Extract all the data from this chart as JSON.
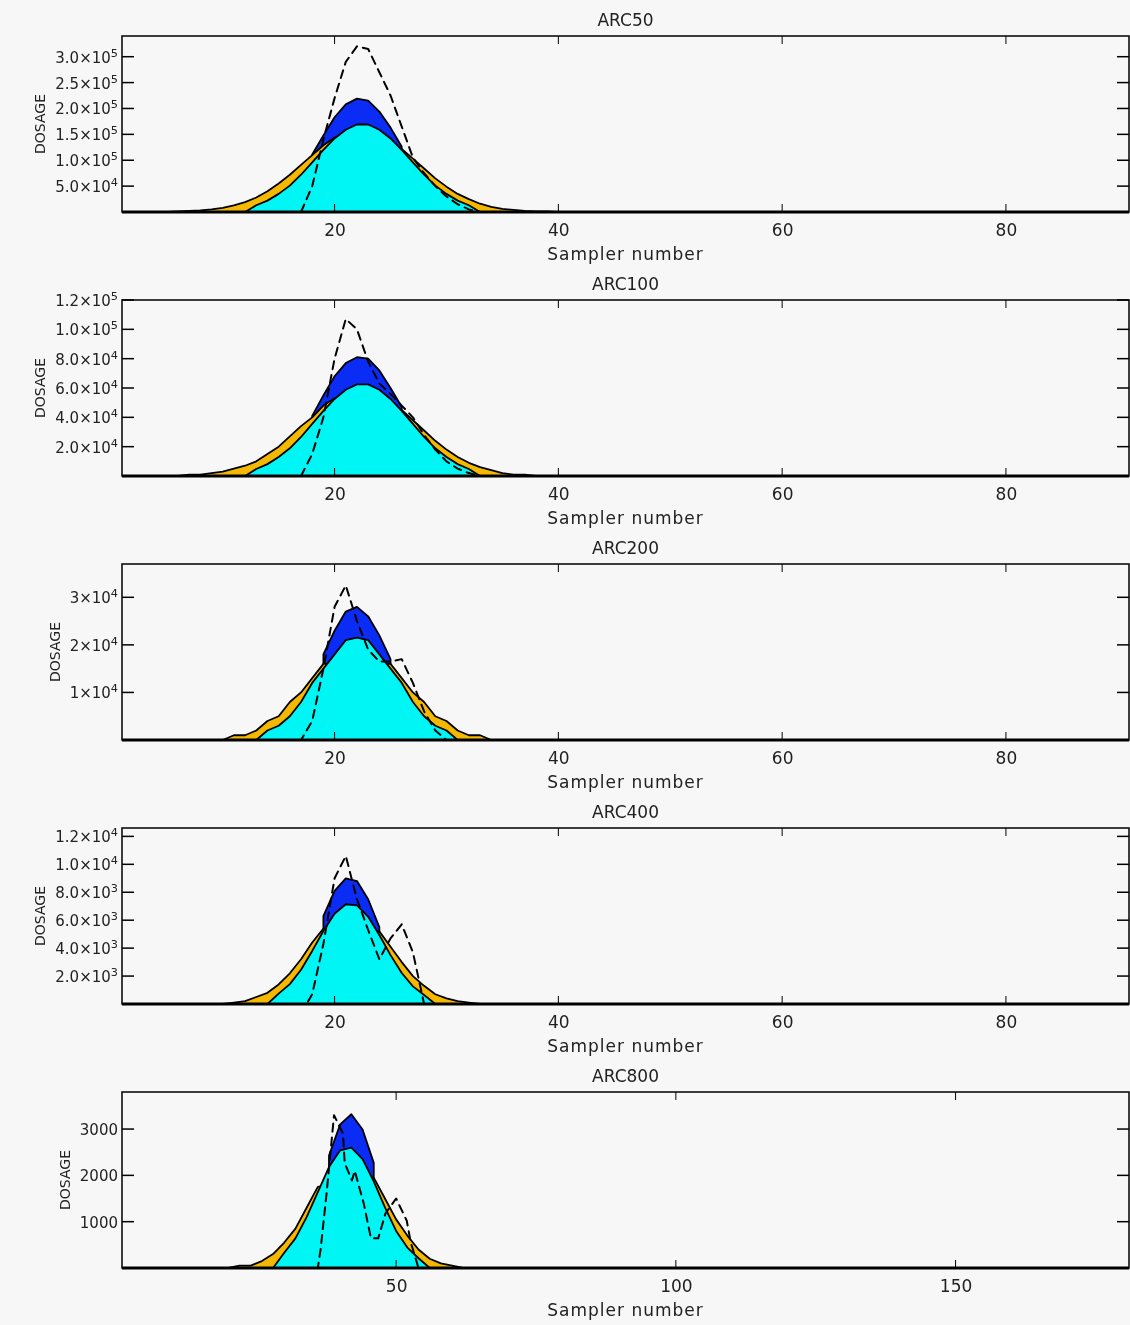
{
  "chart_data": [
    {
      "type": "area",
      "title": "ARC50",
      "xlabel": "Sampler number",
      "ylabel": "DOSAGE",
      "xlim": [
        1,
        91
      ],
      "xticks": [
        20,
        40,
        60,
        80
      ],
      "ylim": [
        0,
        340000
      ],
      "yticks": [
        {
          "value": 50000,
          "label": "5.0×10$^{4}$"
        },
        {
          "value": 100000,
          "label": "1.0×10$^{5}$"
        },
        {
          "value": 150000,
          "label": "1.5×10$^{5}$"
        },
        {
          "value": 200000,
          "label": "2.0×10$^{5}$"
        },
        {
          "value": 250000,
          "label": "2.5×10$^{5}$"
        },
        {
          "value": 300000,
          "label": "3.0×10$^{5}$"
        }
      ],
      "x": [
        5,
        6,
        7,
        8,
        9,
        10,
        11,
        12,
        13,
        14,
        15,
        16,
        17,
        18,
        19,
        20,
        21,
        22,
        23,
        24,
        25,
        26,
        27,
        28,
        29,
        30,
        31,
        32,
        33,
        34,
        35,
        36,
        37,
        38,
        39,
        40
      ],
      "series": [
        {
          "type": "area",
          "color": "#0a2cf5",
          "values": [
            null,
            null,
            null,
            null,
            null,
            null,
            null,
            null,
            null,
            null,
            null,
            null,
            null,
            111000,
            148000,
            183000,
            208000,
            219000,
            215000,
            194000,
            163000,
            126000,
            null,
            null,
            null,
            null,
            null,
            null,
            null,
            null,
            null,
            null,
            null,
            null,
            null,
            null
          ]
        },
        {
          "type": "area",
          "color": "#f5b800",
          "values": [
            0,
            1000,
            2000,
            3000,
            5000,
            8000,
            13000,
            19000,
            28000,
            40000,
            55000,
            72000,
            91000,
            110000,
            129000,
            144000,
            null,
            null,
            null,
            null,
            null,
            122000,
            103000,
            84000,
            65000,
            49000,
            35000,
            25000,
            16000,
            10000,
            6000,
            4000,
            2000,
            1000,
            1000,
            0
          ]
        },
        {
          "type": "area",
          "color": "#00f5f5",
          "values": [
            0,
            0,
            0,
            0,
            0,
            0,
            0,
            0,
            13000,
            22000,
            35000,
            51000,
            72000,
            96000,
            120000,
            142000,
            159000,
            169000,
            169000,
            159000,
            142000,
            120000,
            96000,
            72000,
            51000,
            35000,
            22000,
            13000,
            0,
            0,
            0,
            0,
            0,
            0,
            0,
            0
          ]
        },
        {
          "type": "line",
          "color": "#000000",
          "line_style": "dashed",
          "x": [
            12,
            17,
            18,
            19,
            20,
            21,
            22,
            23,
            24,
            25,
            26,
            27,
            28,
            29,
            30,
            31,
            32,
            33
          ],
          "values": [
            0,
            0,
            50000,
            140000,
            220000,
            290000,
            320000,
            315000,
            270000,
            225000,
            165000,
            105000,
            75000,
            50000,
            30000,
            15000,
            5000,
            0
          ]
        }
      ]
    },
    {
      "type": "area",
      "title": "ARC100",
      "xlabel": "Sampler number",
      "ylabel": "DOSAGE",
      "xlim": [
        1,
        91
      ],
      "xticks": [
        20,
        40,
        60,
        80
      ],
      "ylim": [
        0,
        120000
      ],
      "yticks": [
        {
          "value": 20000,
          "label": "2.0×10$^{4}$"
        },
        {
          "value": 40000,
          "label": "4.0×10$^{4}$"
        },
        {
          "value": 60000,
          "label": "6.0×10$^{4}$"
        },
        {
          "value": 80000,
          "label": "8.0×10$^{4}$"
        },
        {
          "value": 100000,
          "label": "1.0×10$^{5}$"
        },
        {
          "value": 120000,
          "label": "1.2×10$^{5}$"
        }
      ],
      "x": [
        5,
        6,
        7,
        8,
        9,
        10,
        11,
        12,
        13,
        14,
        15,
        16,
        17,
        18,
        19,
        20,
        21,
        22,
        23,
        24,
        25,
        26,
        27,
        28,
        29,
        30,
        31,
        32,
        33,
        34,
        35,
        36,
        37,
        38,
        39,
        40
      ],
      "series": [
        {
          "type": "area",
          "color": "#0a2cf5",
          "values": [
            null,
            null,
            null,
            null,
            null,
            null,
            null,
            null,
            null,
            null,
            null,
            null,
            null,
            41000,
            55000,
            68000,
            77000,
            81000,
            80000,
            72000,
            60000,
            47000,
            null,
            null,
            null,
            null,
            null,
            null,
            null,
            null,
            null,
            null,
            null,
            null,
            null,
            null
          ]
        },
        {
          "type": "area",
          "color": "#f5b800",
          "values": [
            0,
            0,
            1000,
            1000,
            2000,
            3000,
            5000,
            7000,
            10000,
            15000,
            20000,
            27000,
            34000,
            40000,
            48000,
            53000,
            null,
            null,
            null,
            null,
            null,
            45000,
            38000,
            31000,
            24000,
            18000,
            13000,
            9000,
            6000,
            4000,
            2000,
            1000,
            1000,
            0,
            0,
            0
          ]
        },
        {
          "type": "area",
          "color": "#00f5f5",
          "values": [
            0,
            0,
            0,
            0,
            0,
            0,
            0,
            0,
            4800,
            8100,
            13000,
            18900,
            26600,
            35500,
            44400,
            52500,
            58800,
            62500,
            62500,
            58800,
            52500,
            44400,
            35500,
            26600,
            18900,
            13000,
            8100,
            4800,
            0,
            0,
            0,
            0,
            0,
            0,
            0,
            0
          ]
        },
        {
          "type": "line",
          "color": "#000000",
          "line_style": "dashed",
          "x": [
            12,
            17,
            18,
            19,
            20,
            21,
            22,
            23,
            24,
            25,
            26,
            27,
            28,
            29,
            30,
            31,
            32,
            33
          ],
          "values": [
            0,
            0,
            15000,
            40000,
            80000,
            107000,
            100000,
            78000,
            63000,
            56000,
            48000,
            40000,
            28000,
            18000,
            10000,
            5000,
            2000,
            0
          ]
        }
      ]
    },
    {
      "type": "area",
      "title": "ARC200",
      "xlabel": "Sampler number",
      "ylabel": "DOSAGE",
      "xlim": [
        1,
        91
      ],
      "xticks": [
        20,
        40,
        60,
        80
      ],
      "ylim": [
        0,
        37000
      ],
      "yticks": [
        {
          "value": 10000,
          "label": "1×10$^{4}$"
        },
        {
          "value": 20000,
          "label": "2×10$^{4}$"
        },
        {
          "value": 30000,
          "label": "3×10$^{4}$"
        }
      ],
      "x": [
        8,
        9,
        10,
        11,
        12,
        13,
        14,
        15,
        16,
        17,
        18,
        19,
        20,
        21,
        22,
        23,
        24,
        25,
        26,
        27,
        28,
        29,
        30,
        31,
        32,
        33,
        34,
        35,
        36
      ],
      "series": [
        {
          "type": "area",
          "color": "#0a2cf5",
          "values": [
            null,
            null,
            null,
            null,
            null,
            null,
            null,
            null,
            null,
            null,
            null,
            18000,
            23000,
            27000,
            28000,
            26000,
            22000,
            17000,
            null,
            null,
            null,
            null,
            null,
            null,
            null,
            null,
            null,
            null,
            null
          ]
        },
        {
          "type": "area",
          "color": "#f5b800",
          "values": [
            0,
            0,
            0,
            1000,
            1000,
            2000,
            4000,
            5000,
            8000,
            10000,
            13000,
            16000,
            null,
            null,
            null,
            null,
            null,
            16000,
            13000,
            10000,
            8000,
            5000,
            4000,
            2000,
            1000,
            1000,
            0,
            0,
            0
          ]
        },
        {
          "type": "area",
          "color": "#00f5f5",
          "values": [
            0,
            0,
            0,
            0,
            0,
            0,
            2000,
            3000,
            5000,
            8000,
            12000,
            15000,
            18000,
            21000,
            21500,
            21000,
            18000,
            15000,
            12000,
            8000,
            5000,
            3000,
            2000,
            0,
            0,
            0,
            0,
            0,
            0
          ]
        },
        {
          "type": "line",
          "color": "#000000",
          "line_style": "dashed",
          "x": [
            13,
            17,
            18,
            19,
            20,
            21,
            22,
            23,
            24,
            25,
            26,
            27,
            28,
            29,
            30
          ],
          "values": [
            0,
            0,
            4000,
            15000,
            28000,
            32500,
            25000,
            19000,
            16500,
            16500,
            17000,
            12000,
            6000,
            2000,
            0
          ]
        }
      ]
    },
    {
      "type": "area",
      "title": "ARC400",
      "xlabel": "Sampler number",
      "ylabel": "DOSAGE",
      "xlim": [
        1,
        91
      ],
      "xticks": [
        20,
        40,
        60,
        80
      ],
      "ylim": [
        0,
        12600
      ],
      "yticks": [
        {
          "value": 2000,
          "label": "2.0×10$^{3}$"
        },
        {
          "value": 4000,
          "label": "4.0×10$^{3}$"
        },
        {
          "value": 6000,
          "label": "6.0×10$^{3}$"
        },
        {
          "value": 8000,
          "label": "8.0×10$^{3}$"
        },
        {
          "value": 10000,
          "label": "1.0×10$^{4}$"
        },
        {
          "value": 12000,
          "label": "1.2×10$^{4}$"
        }
      ],
      "x": [
        8,
        9,
        10,
        11,
        12,
        13,
        14,
        15,
        16,
        17,
        18,
        19,
        20,
        21,
        22,
        23,
        24,
        25,
        26,
        27,
        28,
        29,
        30,
        31,
        32,
        33,
        34,
        35,
        36
      ],
      "series": [
        {
          "type": "area",
          "color": "#0a2cf5",
          "values": [
            null,
            null,
            null,
            null,
            null,
            null,
            null,
            null,
            null,
            null,
            null,
            6300,
            8100,
            9000,
            8800,
            7500,
            5500,
            null,
            null,
            null,
            null,
            null,
            null,
            null,
            null,
            null,
            null,
            null,
            null
          ]
        },
        {
          "type": "area",
          "color": "#f5b800",
          "values": [
            0,
            0,
            0,
            100,
            200,
            500,
            800,
            1400,
            2200,
            3200,
            4400,
            5400,
            null,
            null,
            null,
            null,
            5200,
            4100,
            3000,
            2000,
            1300,
            700,
            400,
            200,
            100,
            0,
            0,
            0,
            0
          ]
        },
        {
          "type": "area",
          "color": "#00f5f5",
          "values": [
            0,
            0,
            0,
            0,
            0,
            0,
            0,
            740,
            1420,
            2450,
            3800,
            5230,
            6460,
            7140,
            7060,
            6240,
            4940,
            3500,
            2220,
            1260,
            640,
            0,
            0,
            0,
            0,
            0,
            0,
            0,
            0
          ]
        },
        {
          "type": "line",
          "color": "#000000",
          "line_style": "dashed",
          "x": [
            14,
            17.5,
            18,
            19,
            20,
            21,
            22,
            23,
            24,
            25,
            26,
            27,
            28
          ],
          "values": [
            0,
            0,
            700,
            4300,
            9000,
            10600,
            7500,
            5300,
            3200,
            4700,
            5700,
            3700,
            0
          ]
        }
      ]
    },
    {
      "type": "area",
      "title": "ARC800",
      "xlabel": "Sampler number",
      "ylabel": "DOSAGE",
      "xlim": [
        1,
        181
      ],
      "xticks": [
        50,
        100,
        150
      ],
      "ylim": [
        0,
        3800
      ],
      "yticks": [
        1000,
        2000,
        3000
      ],
      "x": [
        20,
        22,
        24,
        26,
        28,
        30,
        32,
        34,
        36,
        38,
        40,
        42,
        44,
        46,
        48,
        50,
        52,
        54,
        56,
        58,
        60,
        62,
        64
      ],
      "series": [
        {
          "type": "area",
          "color": "#0a2cf5",
          "values": [
            null,
            null,
            null,
            null,
            null,
            null,
            null,
            null,
            null,
            2430,
            3100,
            3320,
            2990,
            2270,
            null,
            null,
            null,
            null,
            null,
            null,
            null,
            null,
            null
          ]
        },
        {
          "type": "area",
          "color": "#f5b800",
          "values": [
            0,
            50,
            50,
            150,
            300,
            550,
            850,
            1300,
            1750,
            null,
            null,
            null,
            null,
            1950,
            1500,
            1050,
            700,
            400,
            200,
            100,
            50,
            0,
            0
          ]
        },
        {
          "type": "area",
          "color": "#00f5f5",
          "values": [
            0,
            0,
            0,
            0,
            0,
            330,
            640,
            1100,
            1640,
            2180,
            2540,
            2600,
            2350,
            1870,
            1310,
            800,
            440,
            210,
            0,
            0,
            0,
            0,
            0
          ]
        },
        {
          "type": "line",
          "color": "#000000",
          "line_style": "dashed",
          "x": [
            28,
            36,
            36.5,
            37.6,
            38.9,
            40.5,
            40.8,
            42.1,
            42.6,
            44.2,
            45.5,
            46.8,
            48.1,
            50,
            51.9,
            52.6,
            54
          ],
          "values": [
            0,
            0,
            400,
            1650,
            3300,
            2900,
            2270,
            1890,
            2100,
            1400,
            640,
            640,
            1180,
            1500,
            1020,
            560,
            0
          ]
        }
      ]
    }
  ]
}
